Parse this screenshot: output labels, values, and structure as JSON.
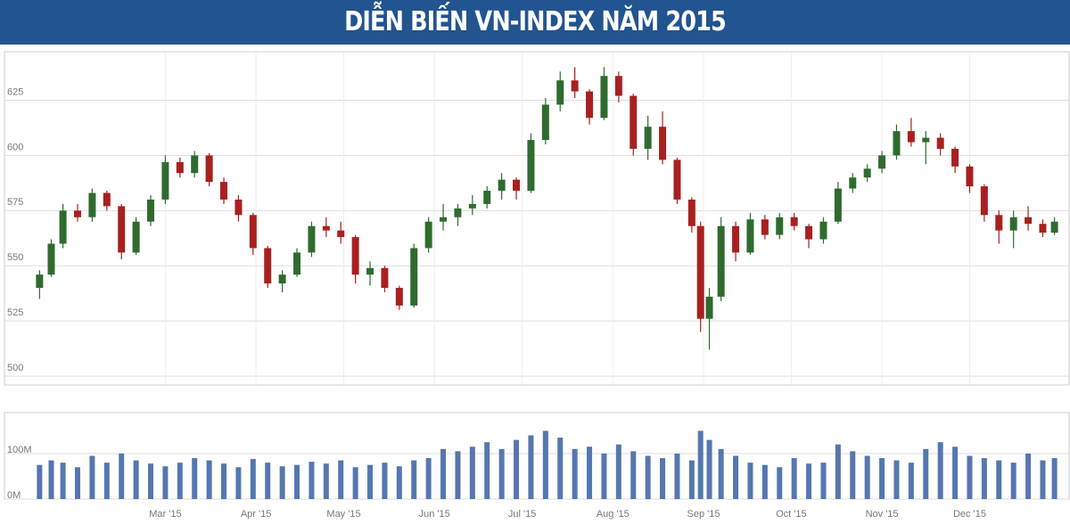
{
  "chart_data": {
    "type": "candlestick",
    "title": "DIỄN BIẾN VN-INDEX NĂM 2015",
    "x": [
      17,
      21,
      25,
      30,
      35,
      40,
      45,
      50,
      55,
      60,
      65,
      70,
      75,
      80,
      85,
      90,
      95,
      100,
      105,
      110,
      115,
      120,
      125,
      130,
      135,
      140,
      145,
      150,
      155,
      160,
      165,
      170,
      175,
      180,
      185,
      190,
      195,
      200,
      205,
      210,
      215,
      220,
      225,
      230,
      235,
      240,
      243,
      246,
      250,
      255,
      260,
      265,
      270,
      275,
      280,
      285,
      290,
      295,
      300,
      305,
      310,
      315,
      320,
      325,
      330,
      335,
      340,
      345,
      350,
      355,
      360,
      364
    ],
    "open": [
      540,
      546,
      560,
      575,
      572,
      583,
      577,
      556,
      570,
      580,
      597,
      592,
      600,
      588,
      580,
      573,
      558,
      542,
      546,
      556,
      568,
      566,
      563,
      546,
      549,
      540,
      532,
      558,
      570,
      572,
      576,
      578,
      584,
      589,
      584,
      607,
      623,
      634,
      629,
      617,
      636,
      627,
      603,
      613,
      598,
      580,
      568,
      526,
      536,
      568,
      556,
      571,
      564,
      572,
      568,
      562,
      570,
      585,
      590,
      594,
      600,
      611,
      606,
      608,
      603,
      595,
      586,
      573,
      566,
      572,
      569,
      565
    ],
    "high": [
      548,
      562,
      578,
      578,
      585,
      584,
      578,
      572,
      582,
      600,
      599,
      602,
      601,
      590,
      582,
      574,
      559,
      548,
      558,
      570,
      572,
      570,
      564,
      552,
      550,
      541,
      560,
      572,
      578,
      578,
      582,
      586,
      592,
      590,
      610,
      626,
      638,
      640,
      630,
      640,
      638,
      628,
      618,
      620,
      599,
      581,
      570,
      540,
      572,
      570,
      574,
      573,
      574,
      574,
      569,
      572,
      588,
      592,
      596,
      602,
      614,
      617,
      611,
      610,
      604,
      596,
      587,
      575,
      575,
      577,
      571,
      572
    ],
    "low": [
      535,
      545,
      558,
      570,
      570,
      575,
      553,
      555,
      568,
      578,
      590,
      590,
      586,
      578,
      570,
      555,
      540,
      538,
      545,
      554,
      563,
      560,
      542,
      541,
      538,
      530,
      531,
      556,
      566,
      568,
      573,
      576,
      580,
      580,
      583,
      605,
      620,
      626,
      614,
      616,
      624,
      600,
      598,
      596,
      578,
      565,
      520,
      512,
      534,
      552,
      555,
      562,
      562,
      566,
      558,
      560,
      569,
      583,
      588,
      592,
      598,
      604,
      596,
      600,
      592,
      583,
      570,
      560,
      558,
      566,
      563,
      564
    ],
    "close": [
      546,
      560,
      575,
      572,
      583,
      577,
      556,
      570,
      580,
      597,
      592,
      600,
      588,
      580,
      573,
      558,
      542,
      546,
      556,
      568,
      566,
      563,
      546,
      549,
      540,
      532,
      558,
      570,
      572,
      576,
      578,
      584,
      589,
      584,
      607,
      623,
      634,
      629,
      617,
      636,
      627,
      603,
      613,
      598,
      580,
      568,
      526,
      536,
      568,
      556,
      571,
      564,
      572,
      568,
      562,
      570,
      585,
      590,
      594,
      600,
      611,
      606,
      608,
      603,
      595,
      586,
      573,
      566,
      572,
      569,
      565,
      570
    ],
    "volume": [
      75,
      85,
      80,
      70,
      95,
      80,
      100,
      85,
      78,
      72,
      80,
      90,
      85,
      78,
      70,
      88,
      80,
      72,
      75,
      82,
      78,
      85,
      70,
      75,
      80,
      72,
      85,
      90,
      110,
      105,
      115,
      125,
      110,
      130,
      140,
      150,
      135,
      110,
      115,
      100,
      120,
      105,
      95,
      90,
      100,
      85,
      150,
      130,
      110,
      95,
      80,
      75,
      70,
      90,
      78,
      80,
      120,
      105,
      95,
      90,
      85,
      80,
      110,
      125,
      115,
      95,
      90,
      85,
      80,
      100,
      85,
      90
    ],
    "xlim": [
      5,
      369
    ],
    "xticks": [
      {
        "value": 60,
        "label": "Mar '15"
      },
      {
        "value": 91,
        "label": "Apr '15"
      },
      {
        "value": 121,
        "label": "May '15"
      },
      {
        "value": 152,
        "label": "Jun '15"
      },
      {
        "value": 182,
        "label": "Jul '15"
      },
      {
        "value": 213,
        "label": "Aug '15"
      },
      {
        "value": 244,
        "label": "Sep '15"
      },
      {
        "value": 274,
        "label": "Oct '15"
      },
      {
        "value": 305,
        "label": "Nov '15"
      },
      {
        "value": 335,
        "label": "Dec '15"
      }
    ],
    "ylim": [
      496,
      647
    ],
    "yticks": [
      500,
      525,
      550,
      575,
      600,
      625
    ],
    "vlim": [
      0,
      190
    ],
    "vticks": [
      {
        "value": 0,
        "label": "0M"
      },
      {
        "value": 100,
        "label": "100M"
      }
    ],
    "up_color": "#2f6b2f",
    "down_color": "#a82020",
    "volume_color": "#5577b0",
    "grid": true
  }
}
